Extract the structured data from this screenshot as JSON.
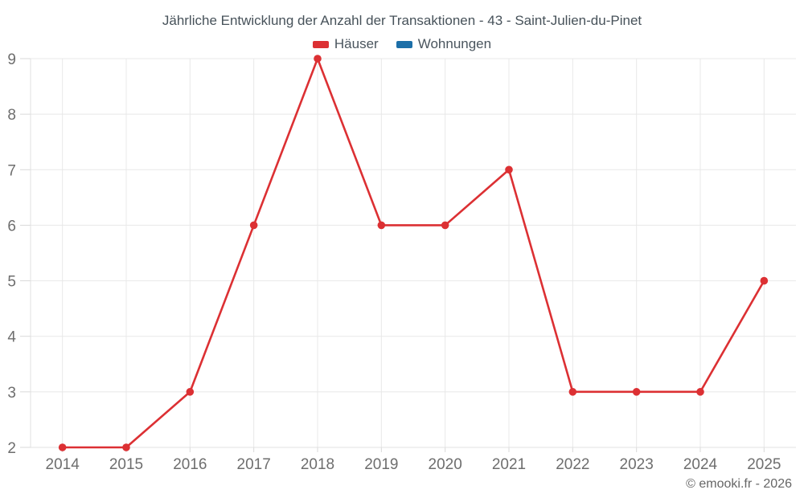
{
  "title": "Jährliche Entwicklung der Anzahl der Transaktionen - 43 - Saint-Julien-du-Pinet",
  "legend": {
    "items": [
      {
        "label": "Häuser",
        "color": "#dc3033"
      },
      {
        "label": "Wohnungen",
        "color": "#1c6fa8"
      }
    ]
  },
  "watermark": "© emooki.fr - 2026",
  "chart_data": {
    "type": "line",
    "categories": [
      "2014",
      "2015",
      "2016",
      "2017",
      "2018",
      "2019",
      "2020",
      "2021",
      "2022",
      "2023",
      "2024",
      "2025"
    ],
    "series": [
      {
        "name": "Häuser",
        "color": "#dc3033",
        "values": [
          2,
          2,
          3,
          6,
          9,
          6,
          6,
          7,
          3,
          3,
          3,
          5
        ]
      },
      {
        "name": "Wohnungen",
        "color": "#1c6fa8",
        "values": []
      }
    ],
    "title": "Jährliche Entwicklung der Anzahl der Transaktionen - 43 - Saint-Julien-du-Pinet",
    "xlabel": "",
    "ylabel": "",
    "ylim": [
      2,
      9
    ],
    "yticks": [
      2,
      3,
      4,
      5,
      6,
      7,
      8,
      9
    ],
    "grid": true,
    "legend_position": "top"
  },
  "colors": {
    "background": "#ffffff",
    "grid": "#e8e8e8",
    "axis": "#e0e0e0",
    "tick": "#d9d9d9",
    "tick_label": "#6e6e6e",
    "title_text": "#47525a",
    "watermark_text": "#666666"
  }
}
